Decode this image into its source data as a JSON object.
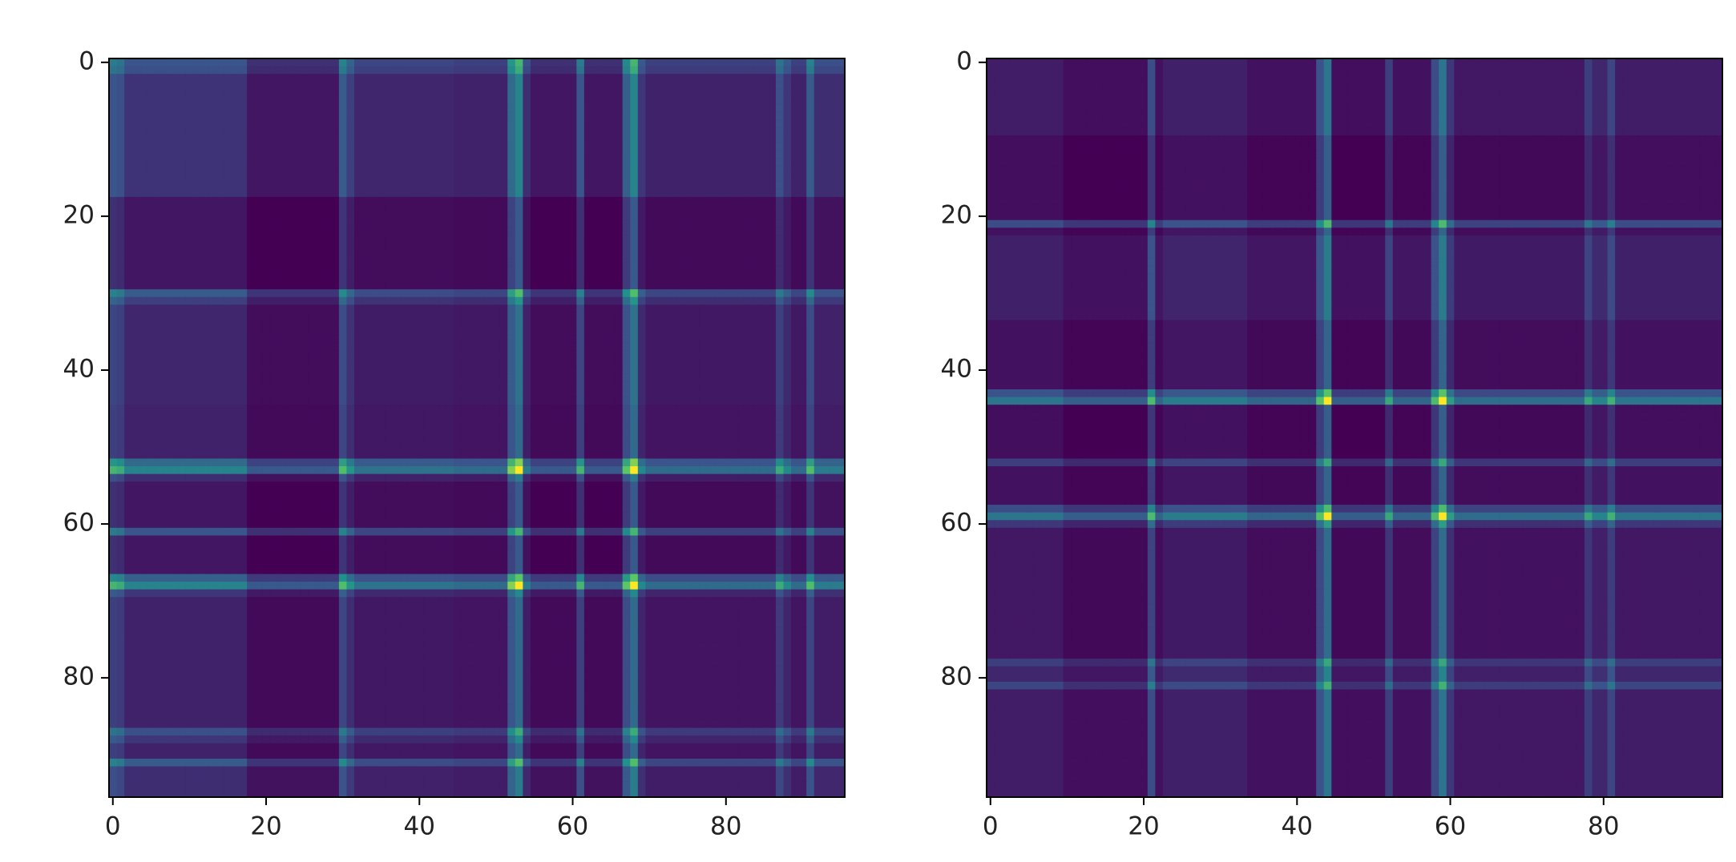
{
  "chart_data": [
    {
      "type": "heatmap",
      "colormap": "viridis",
      "xlim": [
        -0.5,
        95.5
      ],
      "ylim": [
        95.5,
        -0.5
      ],
      "xticks": [
        0,
        20,
        40,
        60,
        80
      ],
      "yticks": [
        0,
        20,
        40,
        60,
        80
      ],
      "values": [
        0.5,
        0.45,
        0.28,
        0.28,
        0.28,
        0.28,
        0.28,
        0.28,
        0.28,
        0.28,
        0.28,
        0.28,
        0.28,
        0.28,
        0.28,
        0.28,
        0.28,
        0.28,
        0.15,
        0.15,
        0.15,
        0.15,
        0.15,
        0.15,
        0.15,
        0.15,
        0.15,
        0.15,
        0.15,
        0.15,
        0.55,
        0.35,
        0.22,
        0.22,
        0.22,
        0.22,
        0.22,
        0.22,
        0.22,
        0.22,
        0.22,
        0.22,
        0.22,
        0.22,
        0.22,
        0.2,
        0.2,
        0.2,
        0.2,
        0.2,
        0.2,
        0.2,
        0.7,
        1,
        0.25,
        0.15,
        0.15,
        0.15,
        0.15,
        0.15,
        0.15,
        0.5,
        0.15,
        0.15,
        0.15,
        0.15,
        0.15,
        0.6,
        1,
        0.3,
        0.2,
        0.2,
        0.2,
        0.2,
        0.2,
        0.2,
        0.2,
        0.2,
        0.2,
        0.2,
        0.2,
        0.2,
        0.2,
        0.2,
        0.2,
        0.2,
        0.2,
        0.45,
        0.3,
        0.2,
        0.2,
        0.55,
        0.25,
        0.25,
        0.25,
        0.25
      ]
    },
    {
      "type": "heatmap",
      "colormap": "viridis",
      "xlim": [
        -0.5,
        95.5
      ],
      "ylim": [
        95.5,
        -0.5
      ],
      "xticks": [
        0,
        20,
        40,
        60,
        80
      ],
      "yticks": [
        0,
        20,
        40,
        60,
        80
      ],
      "values": [
        0.25,
        0.25,
        0.25,
        0.25,
        0.25,
        0.25,
        0.25,
        0.25,
        0.25,
        0.25,
        0.18,
        0.18,
        0.18,
        0.18,
        0.18,
        0.18,
        0.18,
        0.18,
        0.18,
        0.18,
        0.18,
        0.55,
        0.2,
        0.27,
        0.27,
        0.27,
        0.27,
        0.27,
        0.27,
        0.27,
        0.27,
        0.27,
        0.27,
        0.27,
        0.2,
        0.2,
        0.2,
        0.2,
        0.2,
        0.2,
        0.2,
        0.2,
        0.2,
        0.6,
        1,
        0.18,
        0.18,
        0.18,
        0.18,
        0.18,
        0.18,
        0.18,
        0.45,
        0.2,
        0.2,
        0.2,
        0.2,
        0.2,
        0.55,
        1,
        0.4,
        0.22,
        0.22,
        0.22,
        0.22,
        0.22,
        0.22,
        0.22,
        0.22,
        0.22,
        0.22,
        0.22,
        0.22,
        0.22,
        0.22,
        0.22,
        0.22,
        0.22,
        0.45,
        0.3,
        0.3,
        0.5,
        0.25,
        0.25,
        0.25,
        0.25,
        0.25,
        0.25,
        0.25,
        0.25,
        0.25,
        0.25,
        0.25,
        0.25,
        0.25,
        0.25
      ]
    }
  ]
}
